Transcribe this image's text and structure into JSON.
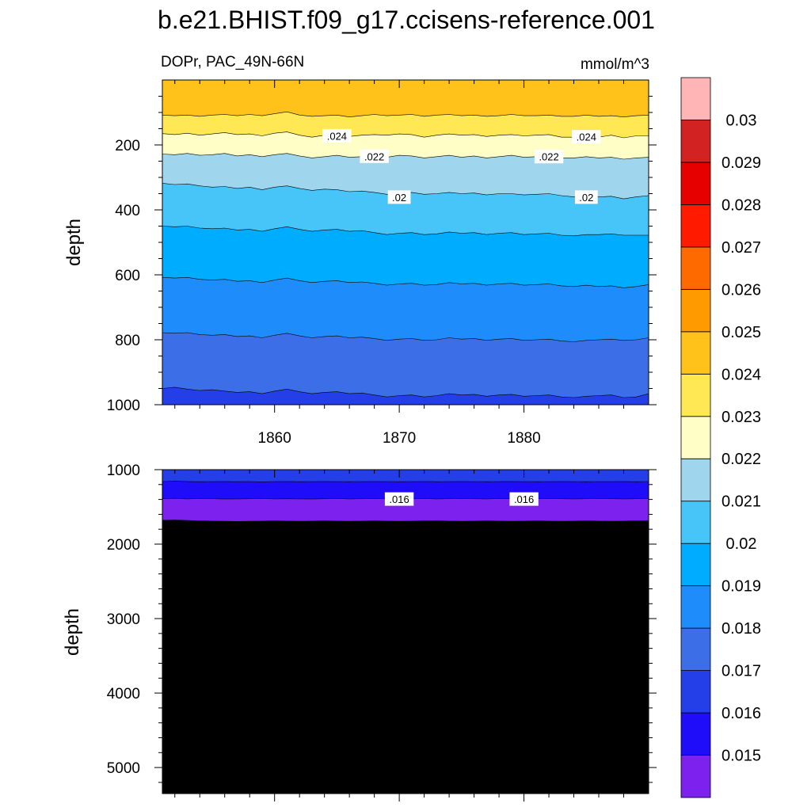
{
  "title": "b.e21.BHIST.f09_g17.ccisens-reference.001",
  "panel_left_label": "DOPr, PAC_49N-66N",
  "panel_right_label": "mmol/m^3",
  "ylabel_top": "depth",
  "ylabel_bottom": "depth",
  "colors": [
    "#7d22ee",
    "#1f0cf9",
    "#243ee8",
    "#3b6ee7",
    "#1e8cfb",
    "#00acfd",
    "#47c4f8",
    "#9fd6ee",
    "#fffec6",
    "#ffe853",
    "#ffc21a",
    "#ff9a00",
    "#ff6a00",
    "#ff1a00",
    "#e60000",
    "#d22222",
    "#ffb5b5"
  ],
  "chart_data": [
    {
      "type": "contour",
      "panel": "upper",
      "variable": "DOPr, PAC_49N-66N",
      "units": "mmol/m^3",
      "x_ticks": [
        "1860",
        "1870",
        "1880"
      ],
      "xlim": [
        1851,
        1890
      ],
      "y_ticks": [
        "200",
        "400",
        "600",
        "800",
        "1000"
      ],
      "ylim": [
        0,
        1000
      ],
      "y_inverted": true,
      "ylabel": "depth",
      "contour_labels": [
        ".024",
        ".024",
        ".022",
        ".022",
        ".02",
        ".02"
      ],
      "contours": [
        {
          "level": 0.025,
          "depth": [
            108,
            110,
            108,
            112,
            108,
            106,
            110,
            106,
            110,
            104,
            98,
            108,
            112,
            110,
            108,
            114,
            110,
            106,
            110,
            108,
            106,
            112,
            108,
            106,
            110,
            108,
            112,
            110,
            106,
            110,
            110,
            108,
            112,
            112,
            108,
            112,
            110,
            114,
            110,
            108
          ]
        },
        {
          "level": 0.024,
          "depth": [
            165,
            168,
            164,
            170,
            166,
            162,
            168,
            166,
            172,
            164,
            160,
            170,
            176,
            170,
            166,
            174,
            170,
            168,
            170,
            166,
            168,
            176,
            170,
            166,
            170,
            168,
            174,
            170,
            168,
            172,
            170,
            168,
            176,
            176,
            170,
            176,
            170,
            178,
            172,
            172
          ]
        },
        {
          "level": 0.023,
          "depth": [
            228,
            230,
            226,
            232,
            230,
            226,
            234,
            230,
            236,
            230,
            226,
            234,
            240,
            236,
            232,
            238,
            236,
            234,
            238,
            232,
            234,
            240,
            236,
            232,
            238,
            234,
            240,
            236,
            232,
            238,
            236,
            234,
            240,
            240,
            236,
            240,
            238,
            244,
            240,
            238
          ]
        },
        {
          "level": 0.022,
          "depth": [
            318,
            322,
            320,
            326,
            330,
            328,
            334,
            330,
            338,
            330,
            326,
            334,
            340,
            336,
            338,
            344,
            342,
            346,
            352,
            348,
            346,
            352,
            350,
            346,
            350,
            348,
            354,
            350,
            350,
            354,
            352,
            350,
            356,
            360,
            356,
            360,
            358,
            366,
            360,
            356
          ]
        },
        {
          "level": 0.021,
          "depth": [
            450,
            452,
            450,
            456,
            458,
            456,
            462,
            460,
            466,
            458,
            452,
            460,
            466,
            462,
            460,
            466,
            464,
            470,
            476,
            472,
            470,
            476,
            474,
            468,
            472,
            470,
            476,
            472,
            470,
            476,
            474,
            472,
            478,
            480,
            476,
            476,
            474,
            478,
            478,
            478
          ]
        },
        {
          "level": 0.02,
          "depth": [
            608,
            610,
            608,
            614,
            616,
            614,
            620,
            618,
            624,
            616,
            610,
            618,
            624,
            620,
            618,
            624,
            622,
            626,
            632,
            628,
            626,
            632,
            630,
            624,
            628,
            626,
            632,
            628,
            626,
            632,
            630,
            628,
            634,
            636,
            632,
            636,
            634,
            640,
            636,
            630
          ]
        },
        {
          "level": 0.019,
          "depth": [
            778,
            780,
            778,
            784,
            786,
            784,
            790,
            788,
            794,
            786,
            780,
            788,
            794,
            790,
            788,
            794,
            792,
            796,
            802,
            798,
            796,
            802,
            800,
            794,
            798,
            796,
            802,
            798,
            796,
            802,
            800,
            798,
            804,
            806,
            802,
            800,
            798,
            802,
            800,
            794
          ]
        },
        {
          "level": 0.018,
          "depth": [
            950,
            946,
            952,
            956,
            954,
            958,
            962,
            960,
            966,
            958,
            952,
            960,
            966,
            962,
            960,
            966,
            964,
            970,
            976,
            972,
            970,
            976,
            972,
            966,
            970,
            968,
            974,
            970,
            968,
            974,
            972,
            970,
            976,
            978,
            974,
            972,
            970,
            978,
            976,
            966
          ]
        }
      ]
    },
    {
      "type": "contour",
      "panel": "lower",
      "x_ticks": [],
      "xlim": [
        1851,
        1890
      ],
      "y_ticks": [
        "1000",
        "2000",
        "3000",
        "4000",
        "5000"
      ],
      "ylim": [
        1000,
        5350
      ],
      "y_inverted": true,
      "ylabel": "depth",
      "contour_labels": [
        ".016",
        ".016"
      ],
      "contours": [
        {
          "level": 0.017,
          "depth": [
            1160,
            1155,
            1158,
            1162,
            1160,
            1158,
            1162,
            1160,
            1164,
            1160,
            1158,
            1162,
            1160,
            1158,
            1160,
            1162,
            1160,
            1158,
            1160,
            1162,
            1160,
            1158,
            1162,
            1160,
            1158,
            1160,
            1162,
            1160,
            1158,
            1160,
            1162,
            1160,
            1158,
            1160,
            1162,
            1160,
            1160,
            1158,
            1162,
            1160
          ]
        },
        {
          "level": 0.016,
          "depth": [
            1390,
            1385,
            1392,
            1388,
            1390,
            1395,
            1392,
            1390,
            1388,
            1392,
            1390,
            1392,
            1395,
            1390,
            1388,
            1392,
            1390,
            1388,
            1390,
            1392,
            1390,
            1388,
            1392,
            1390,
            1388,
            1390,
            1392,
            1388,
            1390,
            1392,
            1390,
            1388,
            1390,
            1392,
            1390,
            1388,
            1390,
            1392,
            1390,
            1388
          ]
        },
        {
          "level": 0.015,
          "depth": [
            1680,
            1675,
            1682,
            1688,
            1690,
            1692,
            1695,
            1692,
            1690,
            1688,
            1690,
            1692,
            1690,
            1688,
            1690,
            1692,
            1690,
            1688,
            1690,
            1692,
            1690,
            1688,
            1686,
            1690,
            1692,
            1690,
            1688,
            1690,
            1692,
            1690,
            1688,
            1690,
            1692,
            1690,
            1688,
            1690,
            1692,
            1690,
            1688,
            1688
          ]
        }
      ]
    }
  ],
  "colorbar": {
    "labels": [
      "0.015",
      "0.016",
      "0.017",
      "0.018",
      "0.019",
      "0.02",
      "0.021",
      "0.022",
      "0.023",
      "0.024",
      "0.025",
      "0.026",
      "0.027",
      "0.028",
      "0.029",
      "0.03"
    ]
  }
}
